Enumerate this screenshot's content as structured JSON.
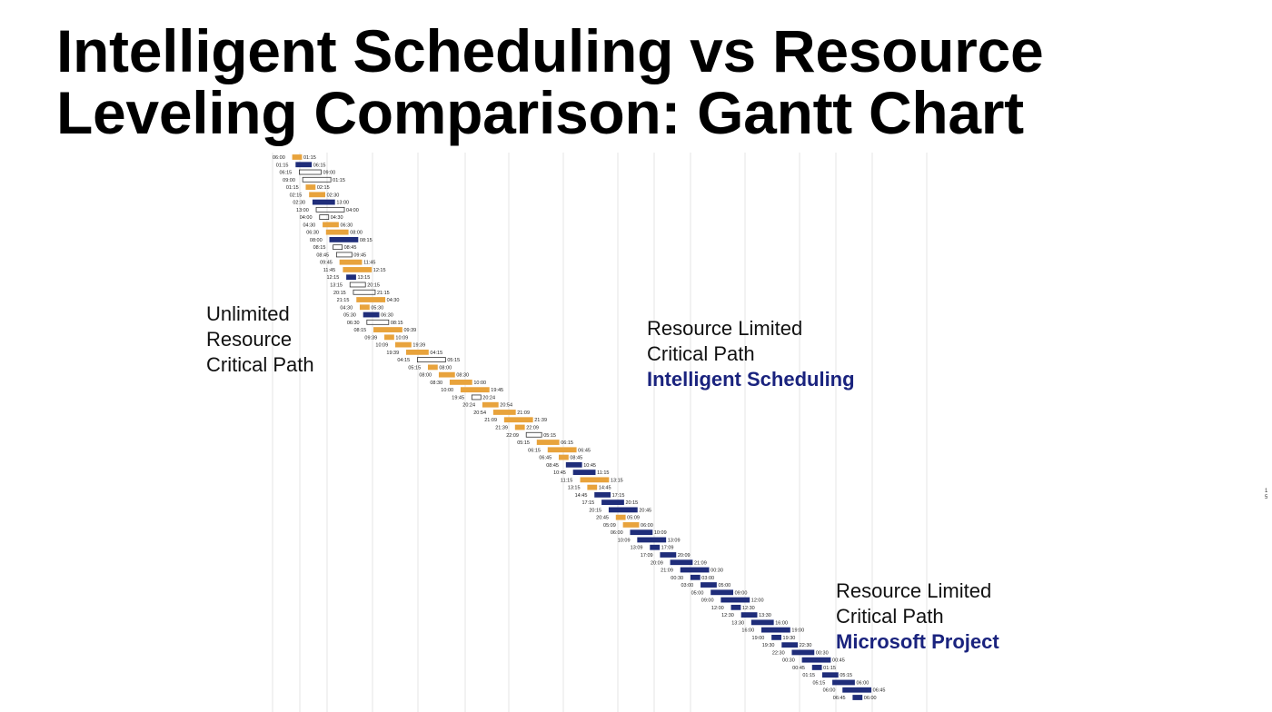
{
  "slide": {
    "title_line1": "Intelligent Scheduling vs Resource",
    "title_line2": "Leveling Comparison: Gantt Chart"
  },
  "labels": {
    "unlimited": {
      "line1": "Unlimited",
      "line2": "Resource",
      "line3": "Critical Path"
    },
    "intelligent": {
      "line1": "Resource Limited",
      "line2": "Critical Path",
      "line3": "Intelligent Scheduling"
    },
    "msproject": {
      "line1": "Resource Limited",
      "line2": "Critical Path",
      "line3": "Microsoft Project"
    }
  },
  "side_numbers": {
    "a": "1",
    "b": "5"
  },
  "colors": {
    "title": "#000000",
    "label_text": "#111111",
    "accent": "#1a237e",
    "bar_orange": "#e8a33c",
    "bar_navy": "#1f2d7a",
    "bar_outline": "#333333",
    "gridline": "#e4e4e4"
  },
  "task_times": [
    "06:00",
    "01:15",
    "06:15",
    "09:00",
    "01:15",
    "02:15",
    "02:30",
    "13:00",
    "04:00",
    "04:30",
    "06:30",
    "08:00",
    "08:15",
    "08:45",
    "09:45",
    "11:45",
    "12:15",
    "13:15",
    "20:15",
    "21:15",
    "04:30",
    "05:30",
    "06:30",
    "08:15",
    "09:39",
    "10:09",
    "19:39",
    "04:15",
    "05:15",
    "08:00",
    "08:30",
    "10:00",
    "19:45",
    "20:24",
    "20:54",
    "21:09",
    "21:39",
    "22:09",
    "05:15",
    "06:15",
    "06:45",
    "08:45",
    "10:45",
    "11:15",
    "13:15",
    "14:45",
    "17:15",
    "20:15",
    "20:45",
    "05:09",
    "06:00",
    "10:09",
    "13:09",
    "17:09",
    "20:09",
    "21:09",
    "00:30",
    "03:00",
    "05:00",
    "09:00",
    "12:00",
    "12:30",
    "13:30",
    "16:00",
    "19:00",
    "19:30",
    "22:30",
    "00:30",
    "00:45",
    "01:15",
    "05:15",
    "06:00",
    "06:45"
  ]
}
